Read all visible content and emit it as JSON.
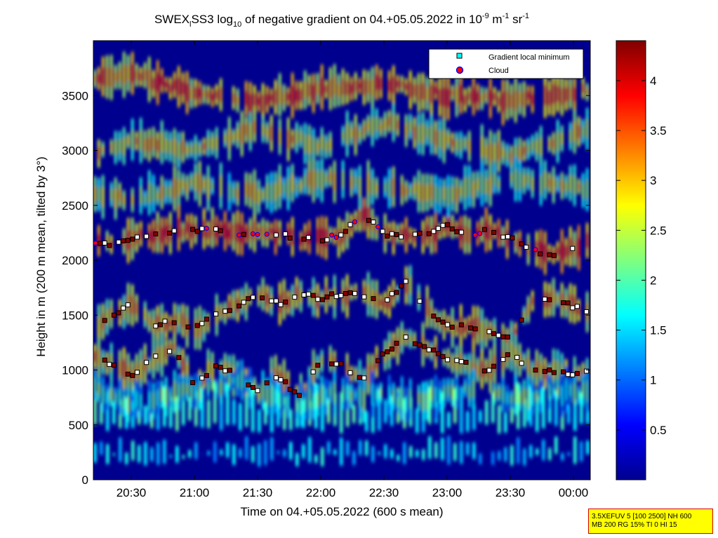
{
  "chart_data": {
    "type": "heatmap",
    "title_parts": {
      "pre": "SWEX",
      "sub": "l",
      "mid": "SS3 log",
      "sub2": "10",
      "post": " of negative gradient on 04.+05.05.2022 in 10",
      "exp1": "-9",
      "unit_m": " m",
      "exp2": "-1",
      "unit_sr": " sr",
      "exp3": "-1"
    },
    "xlabel": "Time on 04.+05.05.2022 (600 s mean)",
    "ylabel": "Height in m (200 m mean, tilted by 3°)",
    "x_ticks": [
      "20:30",
      "21:00",
      "21:30",
      "22:00",
      "22:30",
      "23:00",
      "23:30",
      "00:00"
    ],
    "x_range": [
      "20:12",
      "00:08"
    ],
    "y_ticks": [
      0,
      500,
      1000,
      1500,
      2000,
      2500,
      3000,
      3500
    ],
    "y_range": [
      0,
      4000
    ],
    "colorbar": {
      "ticks": [
        "0.5",
        "1",
        "1.5",
        "2",
        "2.5",
        "3",
        "3.5",
        "4"
      ],
      "range": [
        0,
        4.4
      ],
      "colormap": "jet"
    },
    "legend": {
      "placement": "top-right",
      "entries": [
        {
          "label": "Gradient local minimum",
          "marker": "square",
          "color": "#00ffff"
        },
        {
          "label": "Cloud",
          "marker": "circle",
          "color": "#ff0000"
        }
      ]
    },
    "layers": [
      {
        "times": [
          "20:12",
          "20:20",
          "20:30",
          "20:40",
          "20:50",
          "21:00",
          "21:10",
          "21:20",
          "21:30",
          "21:40",
          "21:50",
          "22:00",
          "22:10",
          "22:20",
          "22:30",
          "22:40",
          "22:50",
          "23:00",
          "23:10",
          "23:20",
          "23:30",
          "23:40",
          "23:50",
          "00:00",
          "00:08"
        ],
        "heights": [
          2150,
          2150,
          2200,
          2240,
          2270,
          2280,
          2270,
          2240,
          2250,
          2230,
          2200,
          2190,
          2240,
          2430,
          2240,
          2220,
          2240,
          2320,
          2230,
          2270,
          2200,
          2090,
          2040,
          2110,
          2200
        ],
        "value": 3.4
      },
      {
        "times": [
          "20:12",
          "20:20",
          "20:30",
          "20:40",
          "20:50",
          "21:00",
          "21:10",
          "21:20",
          "21:30",
          "21:40",
          "21:50",
          "22:00",
          "22:10",
          "22:20",
          "22:30",
          "22:40",
          "22:50",
          "23:00",
          "23:10",
          "23:20",
          "23:30",
          "23:40",
          "23:50",
          "00:00",
          "00:08"
        ],
        "heights": [
          1380,
          1500,
          1600,
          1400,
          1450,
          1390,
          1500,
          1590,
          1680,
          1600,
          1700,
          1650,
          1700,
          1690,
          1600,
          1800,
          1550,
          1400,
          1400,
          1350,
          1300,
          1600,
          1650,
          1580,
          1500
        ],
        "value": 3.0
      },
      {
        "times": [
          "20:12",
          "20:20",
          "20:30",
          "20:40",
          "20:50",
          "21:00",
          "21:10",
          "21:20",
          "21:30",
          "21:40",
          "21:50",
          "22:00",
          "22:10",
          "22:20",
          "22:30",
          "22:40",
          "22:50",
          "23:00",
          "23:10",
          "23:20",
          "23:30",
          "23:40",
          "23:50",
          "00:00",
          "00:08"
        ],
        "heights": [
          1150,
          1050,
          950,
          1100,
          1200,
          850,
          1050,
          950,
          800,
          950,
          750,
          1100,
          1050,
          900,
          1150,
          1300,
          1200,
          1100,
          1050,
          1000,
          1150,
          1000,
          980,
          960,
          980
        ],
        "value": 2.9
      },
      {
        "times": [
          "20:12",
          "20:20",
          "20:30",
          "20:40",
          "20:50",
          "21:00",
          "21:10",
          "21:20",
          "21:30",
          "21:40",
          "21:50",
          "22:00",
          "22:10",
          "22:20",
          "22:30",
          "22:40",
          "22:50",
          "23:00",
          "23:10",
          "23:20",
          "23:30",
          "23:40",
          "23:50",
          "00:00",
          "00:08"
        ],
        "heights": [
          850,
          750,
          700,
          750,
          800,
          820,
          850,
          900,
          800,
          750,
          700,
          760,
          800,
          750,
          780,
          700,
          750,
          800,
          820,
          780,
          760,
          740,
          780,
          800,
          780
        ],
        "value": 2.0
      },
      {
        "times": [
          "20:12",
          "20:30",
          "21:00",
          "21:30",
          "22:00",
          "22:30",
          "23:00",
          "23:30",
          "00:08"
        ],
        "heights": [
          3650,
          3700,
          3500,
          3450,
          3550,
          3600,
          3500,
          3450,
          3550
        ],
        "value": 3.3
      },
      {
        "times": [
          "20:12",
          "20:30",
          "21:00",
          "21:30",
          "22:00",
          "22:30",
          "23:00",
          "23:30",
          "00:08"
        ],
        "heights": [
          2950,
          3100,
          3000,
          3200,
          3050,
          3250,
          3100,
          2950,
          3200
        ],
        "value": 2.8
      },
      {
        "times": [
          "20:12",
          "20:30",
          "21:00",
          "21:30",
          "22:00",
          "22:30",
          "23:00",
          "23:30",
          "00:08"
        ],
        "heights": [
          2600,
          2550,
          2700,
          2600,
          2750,
          2650,
          2600,
          2750,
          2650
        ],
        "value": 2.6
      }
    ]
  },
  "info_box": {
    "line1": "3.5XEFUV 5 [100 2500] NH 600",
    "line2": "MB 200 RG 15% TI 0 HI 15"
  }
}
